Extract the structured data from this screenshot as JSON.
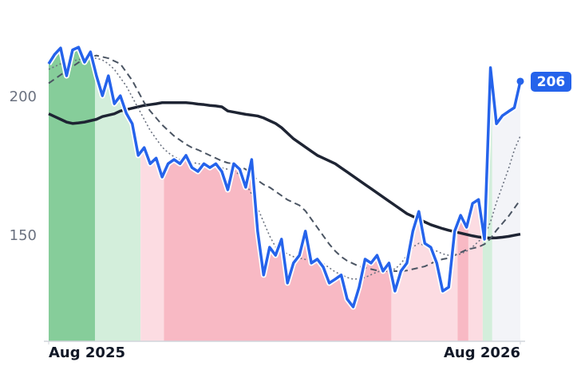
{
  "chart_data": {
    "type": "line",
    "x": [
      0,
      1,
      2,
      3,
      4,
      5,
      6,
      7,
      8,
      9,
      10,
      11,
      12,
      13,
      14,
      15,
      16,
      17,
      18,
      19,
      20,
      21,
      22,
      23,
      24,
      25,
      26,
      27,
      28,
      29,
      30,
      31,
      32,
      33,
      34,
      35,
      36,
      37,
      38,
      39,
      40,
      41,
      42,
      43,
      44,
      45,
      46,
      47,
      48,
      49,
      50,
      51,
      52,
      53,
      54,
      55,
      56,
      57,
      58,
      59,
      60,
      61,
      62,
      63,
      64,
      65,
      66,
      67,
      68,
      69,
      70,
      71,
      72,
      73,
      74,
      75,
      76,
      77,
      78,
      79
    ],
    "xlim": [
      0,
      79
    ],
    "xticks": [
      {
        "value": 0,
        "label": "Aug 2025"
      },
      {
        "value": 79,
        "label": "Aug 2026"
      }
    ],
    "ylim": [
      112,
      235
    ],
    "yticks": [
      150,
      200
    ],
    "series": [
      {
        "color": "#2563eb",
        "style": "solid",
        "values": [
          212,
          215.4,
          217.7,
          207.7,
          217,
          218,
          212.6,
          216.3,
          207.7,
          200.5,
          207.7,
          197.6,
          200.5,
          194.2,
          190.4,
          179,
          181.8,
          176,
          178,
          171.2,
          176,
          177.5,
          176,
          179,
          174.6,
          173.2,
          176,
          174.6,
          176,
          173.2,
          166.6,
          176,
          174,
          167.5,
          177.5,
          151.7,
          135.9,
          145.9,
          143,
          148.8,
          133,
          140.2,
          143,
          151.7,
          140.2,
          141.6,
          138.7,
          133,
          134.4,
          135.9,
          127.2,
          124.4,
          131.5,
          141.6,
          140.2,
          143,
          137.3,
          140.2,
          130.1,
          137.3,
          140.2,
          151.7,
          158.8,
          147.3,
          145.9,
          140.2,
          130.1,
          131.5,
          151.7,
          157.4,
          153.1,
          161.7,
          163.1,
          148.8,
          210.6,
          190.4,
          193.3,
          194.8,
          196.2,
          205.7
        ]
      },
      {
        "color": "#1e2433",
        "style": "solid",
        "values": [
          194,
          193,
          192,
          191,
          190.5,
          190.7,
          191,
          191.5,
          192,
          193,
          193.5,
          194,
          195,
          195.5,
          196,
          196.5,
          197,
          197.3,
          197.6,
          198,
          198,
          198,
          198,
          198,
          197.8,
          197.5,
          197.3,
          197,
          196.8,
          196.5,
          195,
          194.6,
          194.2,
          193.8,
          193.5,
          193.2,
          192.5,
          191.5,
          190.5,
          189,
          187,
          185,
          183.5,
          182,
          180.5,
          179,
          178,
          177,
          176,
          174.5,
          173,
          171.5,
          170,
          168.5,
          167,
          165.5,
          164,
          162.5,
          161,
          159.5,
          158,
          157,
          156,
          155,
          154,
          153.3,
          152.6,
          152,
          151.5,
          151,
          150.5,
          150,
          149.6,
          149.3,
          149.2,
          149.3,
          149.5,
          149.8,
          150.2,
          150.6
        ]
      },
      {
        "color": "#4b5563",
        "style": "dashed",
        "values": [
          205,
          206.5,
          208,
          209.5,
          211,
          212.5,
          213.5,
          214.5,
          215,
          214.5,
          214,
          213,
          212,
          209,
          206,
          202,
          198,
          195,
          192.5,
          190,
          188,
          186,
          184.5,
          183,
          181.8,
          181,
          180,
          179,
          178,
          177,
          176.3,
          176,
          175,
          174,
          172,
          170,
          168.5,
          167.5,
          166,
          164.5,
          163,
          162,
          161,
          159,
          156,
          153,
          150,
          147,
          144.5,
          142.5,
          141,
          140,
          139,
          138.5,
          138,
          137.5,
          137.3,
          137.3,
          137.3,
          137.3,
          137.5,
          138,
          138.5,
          139,
          140,
          141,
          141.6,
          142,
          143,
          144,
          145,
          145.5,
          146,
          147,
          149,
          152,
          154.5,
          157,
          160,
          163
        ]
      },
      {
        "color": "#6b7280",
        "style": "dotted",
        "values": [
          210,
          211,
          212,
          212.5,
          213,
          213.5,
          214,
          214,
          214,
          213.4,
          212,
          210,
          207,
          204,
          200,
          196,
          192,
          188,
          185,
          182,
          180,
          178.5,
          177.5,
          177,
          176.5,
          176,
          175.8,
          175.5,
          175,
          174.5,
          174,
          173.5,
          172,
          169,
          165,
          160,
          155,
          150,
          146,
          144.5,
          143.5,
          142.5,
          142,
          141.5,
          141,
          141,
          140,
          138.5,
          137,
          136,
          135,
          134.4,
          134.5,
          135,
          136,
          137,
          137.5,
          138,
          138,
          140,
          143,
          146,
          147.3,
          146.5,
          145.5,
          144.5,
          143.5,
          143,
          143,
          143.5,
          144.5,
          146,
          148,
          150,
          155,
          162,
          168,
          174,
          181,
          186
        ]
      }
    ],
    "regimes": [
      {
        "start": 0,
        "end": 7.75,
        "color": "#86cd9a"
      },
      {
        "start": 7.75,
        "end": 15.4,
        "color": "#d3eedb"
      },
      {
        "start": 15.4,
        "end": 19.3,
        "color": "#fcdce2"
      },
      {
        "start": 19.3,
        "end": 57.4,
        "color": "#f8b9c4"
      },
      {
        "start": 57.4,
        "end": 68.5,
        "color": "#fcdce2"
      },
      {
        "start": 68.5,
        "end": 70.3,
        "color": "#f8b9c4"
      },
      {
        "start": 70.3,
        "end": 72.7,
        "color": "#fcdce2"
      },
      {
        "start": 72.7,
        "end": 74.3,
        "color": "#d3eedb"
      },
      {
        "start": 74.3,
        "end": 79,
        "color": "#f3f4f8"
      }
    ],
    "annotation": "206"
  }
}
